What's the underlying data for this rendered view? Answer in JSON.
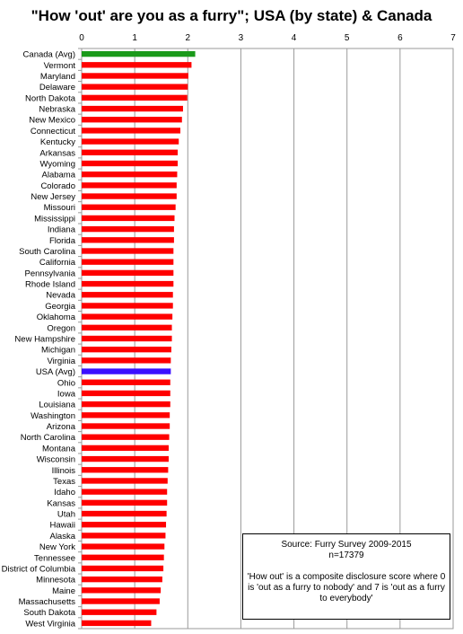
{
  "chart_data": {
    "type": "bar",
    "orientation": "horizontal",
    "title": "\"How 'out' are you as a furry\"; USA (by state) & Canada",
    "xlim": [
      0,
      7
    ],
    "xticks": [
      "0",
      "1",
      "2",
      "3",
      "4",
      "5",
      "6",
      "7"
    ],
    "grid": true,
    "categories": [
      "Canada (Avg)",
      "Vermont",
      "Maryland",
      "Delaware",
      "North Dakota",
      "Nebraska",
      "New Mexico",
      "Connecticut",
      "Kentucky",
      "Arkansas",
      "Wyoming",
      "Alabama",
      "Colorado",
      "New Jersey",
      "Missouri",
      "Mississippi",
      "Indiana",
      "Florida",
      "South Carolina",
      "California",
      "Pennsylvania",
      "Rhode Island",
      "Nevada",
      "Georgia",
      "Oklahoma",
      "Oregon",
      "New Hampshire",
      "Michigan",
      "Virginia",
      "USA (Avg)",
      "Ohio",
      "Iowa",
      "Louisiana",
      "Washington",
      "Arizona",
      "North Carolina",
      "Montana",
      "Wisconsin",
      "Illinois",
      "Texas",
      "Idaho",
      "Kansas",
      "Utah",
      "Hawaii",
      "Alaska",
      "New York",
      "Tennessee",
      "District of Columbia",
      "Minnesota",
      "Maine",
      "Massachusetts",
      "South Dakota",
      "West Virginia"
    ],
    "values": [
      2.14,
      2.07,
      2.01,
      2.0,
      1.99,
      1.91,
      1.89,
      1.86,
      1.83,
      1.81,
      1.81,
      1.8,
      1.79,
      1.79,
      1.77,
      1.75,
      1.74,
      1.74,
      1.73,
      1.73,
      1.73,
      1.73,
      1.72,
      1.72,
      1.71,
      1.7,
      1.7,
      1.69,
      1.68,
      1.68,
      1.67,
      1.67,
      1.67,
      1.66,
      1.66,
      1.65,
      1.64,
      1.64,
      1.63,
      1.62,
      1.61,
      1.61,
      1.6,
      1.59,
      1.58,
      1.56,
      1.55,
      1.54,
      1.52,
      1.49,
      1.47,
      1.41,
      1.31
    ],
    "colors": {
      "default": "#ff0000",
      "Canada (Avg)": "#1a9a1a",
      "USA (Avg)": "#3a10ff"
    }
  },
  "note": {
    "source": "Source: Furry Survey 2009-2015",
    "n": "n=17379",
    "description": "'How out' is a composite disclosure score where 0 is 'out as a furry to nobody' and 7 is 'out as a furry to everybody'"
  }
}
